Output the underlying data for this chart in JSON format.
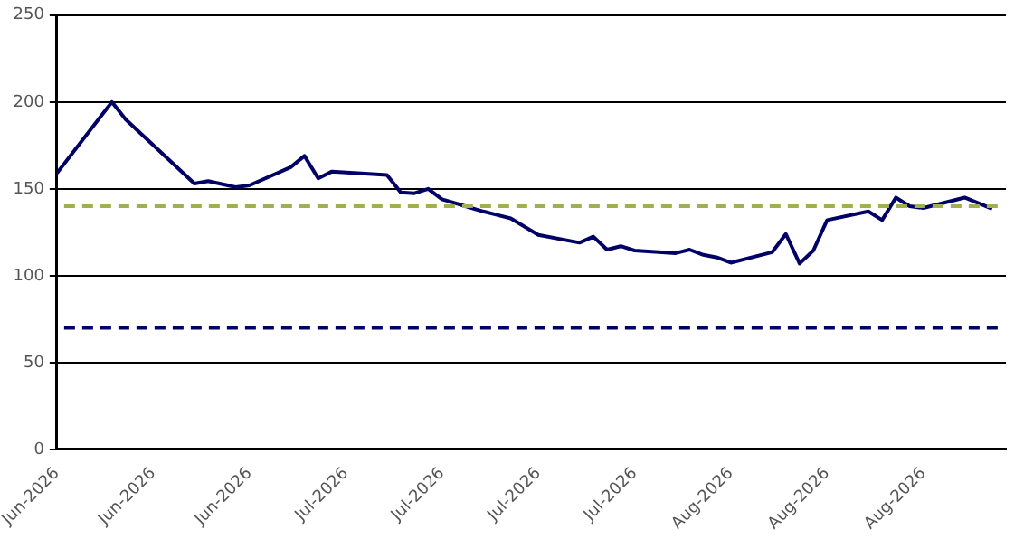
{
  "chart_data": {
    "type": "line",
    "x": [
      "2026-06-15",
      "2026-06-19",
      "2026-06-20",
      "2026-06-25",
      "2026-06-26",
      "2026-06-28",
      "2026-06-29",
      "2026-07-02",
      "2026-07-03",
      "2026-07-04",
      "2026-07-05",
      "2026-07-09",
      "2026-07-10",
      "2026-07-11",
      "2026-07-12",
      "2026-07-13",
      "2026-07-16",
      "2026-07-17",
      "2026-07-18",
      "2026-07-20",
      "2026-07-23",
      "2026-07-24",
      "2026-07-25",
      "2026-07-26",
      "2026-07-27",
      "2026-07-30",
      "2026-07-31",
      "2026-08-01",
      "2026-08-02",
      "2026-08-03",
      "2026-08-06",
      "2026-08-07",
      "2026-08-08",
      "2026-08-09",
      "2026-08-10",
      "2026-08-13",
      "2026-08-14",
      "2026-08-15",
      "2026-08-16",
      "2026-08-17",
      "2026-08-20",
      "2026-08-22"
    ],
    "series": [
      {
        "color": "#000066",
        "values": [
          159,
          200,
          190,
          153,
          154.5,
          151,
          152,
          162.5,
          169,
          156,
          160,
          158,
          148,
          147.5,
          150,
          144,
          137,
          135,
          133,
          123.5,
          119,
          122.5,
          115,
          117,
          114.5,
          113,
          115,
          112,
          110.5,
          107.5,
          113.5,
          124,
          107,
          114.5,
          132,
          137,
          132,
          145,
          140,
          139,
          145,
          138.5
        ]
      }
    ],
    "xlim": [
      "2026-06-15",
      "2026-08-23"
    ],
    "xticks": [
      {
        "value": "2026-06-15",
        "label": "Jun-2026"
      },
      {
        "value": "2026-06-22",
        "label": "Jun-2026"
      },
      {
        "value": "2026-06-29",
        "label": "Jun-2026"
      },
      {
        "value": "2026-07-06",
        "label": "Jul-2026"
      },
      {
        "value": "2026-07-13",
        "label": "Jul-2026"
      },
      {
        "value": "2026-07-20",
        "label": "Jul-2026"
      },
      {
        "value": "2026-07-27",
        "label": "Jul-2026"
      },
      {
        "value": "2026-08-03",
        "label": "Aug-2026"
      },
      {
        "value": "2026-08-10",
        "label": "Aug-2026"
      },
      {
        "value": "2026-08-17",
        "label": "Aug-2026"
      }
    ],
    "ylim": [
      0,
      250
    ],
    "yticks": [
      0,
      50,
      100,
      150,
      200,
      250
    ],
    "grid": "y",
    "legend": false,
    "marker": "none",
    "line_style": "solid",
    "ref_lines": [
      {
        "axis": "y",
        "value": 140,
        "color": "#a0b050",
        "line_style": "dashed"
      },
      {
        "axis": "y",
        "value": 70,
        "color": "#000066",
        "line_style": "dashed"
      }
    ]
  }
}
